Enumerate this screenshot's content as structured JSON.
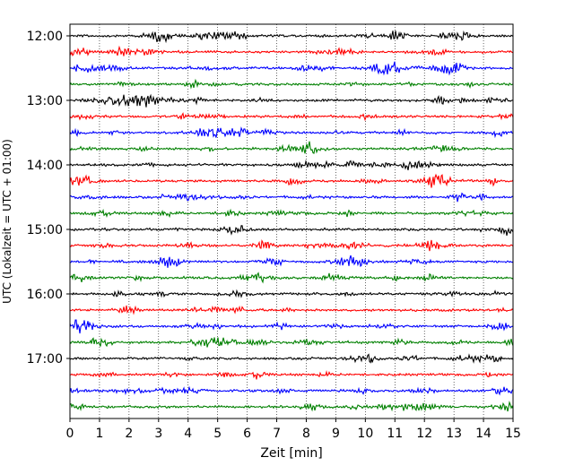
{
  "chart_data": {
    "type": "line",
    "title": "",
    "xlabel": "Zeit  [min]",
    "ylabel": "UTC (Lokalzeit = UTC + 01:00)",
    "xlim": [
      0,
      15
    ],
    "x_ticks": [
      "0",
      "1",
      "2",
      "3",
      "4",
      "5",
      "6",
      "7",
      "8",
      "9",
      "10",
      "11",
      "12",
      "13",
      "14",
      "15"
    ],
    "y_ticks": [
      "12:00",
      "13:00",
      "14:00",
      "15:00",
      "16:00",
      "17:00"
    ],
    "grid": "vertical dotted lines at every minute",
    "legend": "none",
    "trace_colors": [
      "#000000",
      "#ff0000",
      "#0000ff",
      "#008000"
    ],
    "series": [
      {
        "start": "12:00"
      },
      {
        "start": "12:15"
      },
      {
        "start": "12:30"
      },
      {
        "start": "12:45"
      },
      {
        "start": "13:00"
      },
      {
        "start": "13:15"
      },
      {
        "start": "13:30"
      },
      {
        "start": "13:45"
      },
      {
        "start": "14:00"
      },
      {
        "start": "14:15"
      },
      {
        "start": "14:30"
      },
      {
        "start": "14:45"
      },
      {
        "start": "15:00"
      },
      {
        "start": "15:15"
      },
      {
        "start": "15:30"
      },
      {
        "start": "15:45"
      },
      {
        "start": "16:00"
      },
      {
        "start": "16:15"
      },
      {
        "start": "16:30"
      },
      {
        "start": "16:45"
      },
      {
        "start": "17:00"
      },
      {
        "start": "17:15"
      },
      {
        "start": "17:30"
      },
      {
        "start": "17:45"
      }
    ]
  }
}
